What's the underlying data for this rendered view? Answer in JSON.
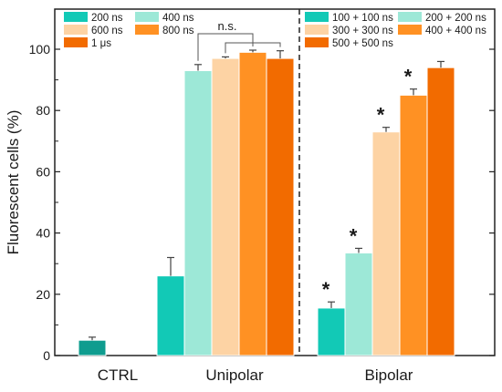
{
  "colors": {
    "ctrl": "#0F9C8F",
    "s200": "#12C9B6",
    "s400": "#9DE8D7",
    "s600": "#FDD3A4",
    "s800": "#FF9123",
    "s1us": "#F26B00",
    "bar_stroke": "#ffffff",
    "axis": "#222222",
    "err": "#444444"
  },
  "chart_data": {
    "type": "bar",
    "ylabel": "Fluorescent cells (%)",
    "ylim": [
      0,
      110
    ],
    "yticks": [
      "0",
      "20",
      "40",
      "60",
      "80",
      "100"
    ],
    "groups": [
      "CTRL",
      "Unipolar",
      "Bipolar"
    ],
    "legend_unipolar": [
      "200 ns",
      "400 ns",
      "600 ns",
      "800 ns",
      "1 μs"
    ],
    "legend_bipolar": [
      "100 + 100 ns",
      "200 + 200 ns",
      "300 + 300 ns",
      "400 + 400 ns",
      "500 + 500 ns"
    ],
    "bars": [
      {
        "group": "CTRL",
        "series": "Control",
        "color_key": "ctrl",
        "value": 5,
        "error": 1
      },
      {
        "group": "Unipolar",
        "series": "200 ns",
        "color_key": "s200",
        "value": 26,
        "error": 6,
        "star": ""
      },
      {
        "group": "Unipolar",
        "series": "400 ns",
        "color_key": "s400",
        "value": 93,
        "error": 2,
        "star": ""
      },
      {
        "group": "Unipolar",
        "series": "600 ns",
        "color_key": "s600",
        "value": 97,
        "error": 0.5,
        "star": ""
      },
      {
        "group": "Unipolar",
        "series": "800 ns",
        "color_key": "s800",
        "value": 99,
        "error": 0.7,
        "star": ""
      },
      {
        "group": "Unipolar",
        "series": "1 μs",
        "color_key": "s1us",
        "value": 97,
        "error": 2.5,
        "star": ""
      },
      {
        "group": "Bipolar",
        "series": "100 + 100 ns",
        "color_key": "s200",
        "value": 15.5,
        "error": 2,
        "star": "*"
      },
      {
        "group": "Bipolar",
        "series": "200 + 200 ns",
        "color_key": "s400",
        "value": 33.5,
        "error": 1.5,
        "star": "*"
      },
      {
        "group": "Bipolar",
        "series": "300 + 300 ns",
        "color_key": "s600",
        "value": 73,
        "error": 1.5,
        "star": "*"
      },
      {
        "group": "Bipolar",
        "series": "400 + 400 ns",
        "color_key": "s800",
        "value": 85,
        "error": 2,
        "star": "*"
      },
      {
        "group": "Bipolar",
        "series": "500 + 500 ns",
        "color_key": "s1us",
        "value": 94,
        "error": 2,
        "star": ""
      }
    ],
    "annotation": "n.s."
  }
}
